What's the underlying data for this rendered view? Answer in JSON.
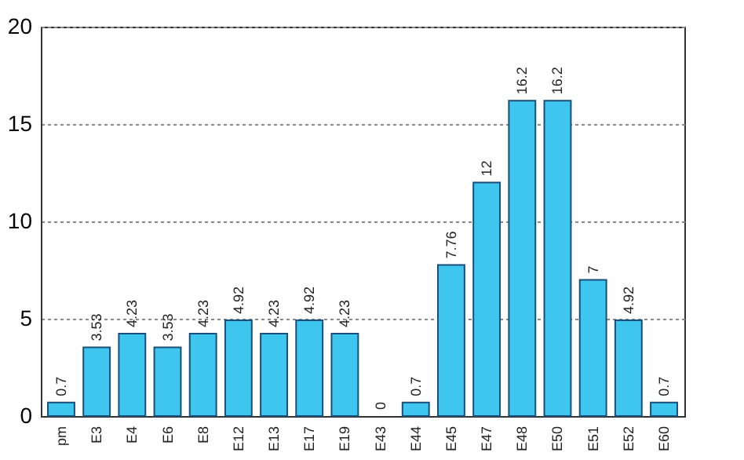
{
  "chart_data": {
    "type": "bar",
    "categories": [
      "pm",
      "E3",
      "E4",
      "E6",
      "E8",
      "E12",
      "E13",
      "E17",
      "E19",
      "E43",
      "E44",
      "E45",
      "E47",
      "E48",
      "E50",
      "E51",
      "E52",
      "E60"
    ],
    "values": [
      0.7,
      3.53,
      4.23,
      3.53,
      4.23,
      4.92,
      4.23,
      4.92,
      4.23,
      0,
      0.7,
      7.76,
      12,
      16.2,
      16.2,
      7,
      4.92,
      0.7
    ],
    "color": "#3ec6ef",
    "ylim": [
      0,
      20
    ],
    "yticks": [
      0,
      5,
      10,
      15,
      20
    ],
    "grid": "y",
    "data_labels": true
  }
}
